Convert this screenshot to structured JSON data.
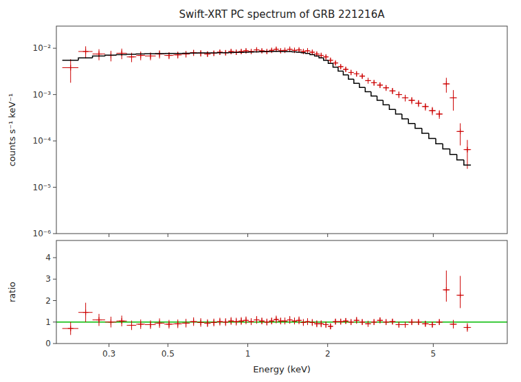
{
  "chart_data": [
    {
      "type": "scatter",
      "title": "Swift-XRT PC spectrum of GRB 221216A",
      "ylabel": "counts s⁻¹ keV⁻¹",
      "log": true,
      "grid": false,
      "tick_labels": "y",
      "background": "#ffffff",
      "xlim": [
        0.19,
        9.5
      ],
      "ylim": [
        1e-06,
        0.03
      ],
      "xticks": [
        0.3,
        0.5,
        1,
        2,
        5
      ],
      "yticks": [
        {
          "value": 1e-06,
          "label": "10⁻⁶"
        },
        {
          "value": 1e-05,
          "label": "10⁻⁵"
        },
        {
          "value": 0.0001,
          "label": "10⁻⁴"
        },
        {
          "value": 0.001,
          "label": "10⁻³"
        },
        {
          "value": 0.01,
          "label": "10⁻²"
        }
      ],
      "series": [
        {
          "type": "scatter",
          "color": "#cc0000",
          "marker": "plus",
          "x": [
            0.215,
            0.245,
            0.275,
            0.305,
            0.335,
            0.365,
            0.395,
            0.43,
            0.465,
            0.505,
            0.545,
            0.585,
            0.625,
            0.665,
            0.705,
            0.745,
            0.785,
            0.825,
            0.865,
            0.905,
            0.945,
            0.985,
            1.03,
            1.08,
            1.13,
            1.18,
            1.23,
            1.28,
            1.33,
            1.38,
            1.44,
            1.5,
            1.56,
            1.62,
            1.68,
            1.75,
            1.82,
            1.89,
            1.97,
            2.05,
            2.14,
            2.24,
            2.34,
            2.45,
            2.57,
            2.7,
            2.84,
            2.99,
            3.15,
            3.32,
            3.51,
            3.71,
            3.92,
            4.15,
            4.4,
            4.67,
            4.96,
            5.27,
            5.6,
            5.95,
            6.32,
            6.72
          ],
          "xerr_lo": [
            0.015,
            0.015,
            0.015,
            0.015,
            0.015,
            0.015,
            0.015,
            0.02,
            0.02,
            0.02,
            0.02,
            0.02,
            0.02,
            0.02,
            0.02,
            0.02,
            0.02,
            0.02,
            0.02,
            0.02,
            0.02,
            0.02,
            0.025,
            0.025,
            0.025,
            0.025,
            0.025,
            0.025,
            0.025,
            0.025,
            0.03,
            0.03,
            0.03,
            0.03,
            0.03,
            0.035,
            0.035,
            0.035,
            0.04,
            0.04,
            0.045,
            0.05,
            0.05,
            0.055,
            0.06,
            0.065,
            0.07,
            0.075,
            0.08,
            0.085,
            0.095,
            0.105,
            0.11,
            0.12,
            0.13,
            0.14,
            0.15,
            0.16,
            0.17,
            0.185,
            0.2,
            0.215
          ],
          "xerr_hi": [
            0.015,
            0.015,
            0.015,
            0.015,
            0.015,
            0.015,
            0.015,
            0.02,
            0.02,
            0.02,
            0.02,
            0.02,
            0.02,
            0.02,
            0.02,
            0.02,
            0.02,
            0.02,
            0.02,
            0.02,
            0.02,
            0.02,
            0.025,
            0.025,
            0.025,
            0.025,
            0.025,
            0.025,
            0.025,
            0.025,
            0.03,
            0.03,
            0.03,
            0.03,
            0.03,
            0.035,
            0.035,
            0.035,
            0.04,
            0.04,
            0.045,
            0.05,
            0.05,
            0.055,
            0.06,
            0.065,
            0.07,
            0.075,
            0.08,
            0.085,
            0.095,
            0.105,
            0.11,
            0.12,
            0.13,
            0.14,
            0.15,
            0.16,
            0.17,
            0.185,
            0.2,
            0.215
          ],
          "values": [
            0.0038,
            0.0085,
            0.0075,
            0.007,
            0.0078,
            0.0065,
            0.007,
            0.0068,
            0.0075,
            0.007,
            0.0072,
            0.0075,
            0.008,
            0.0078,
            0.0075,
            0.0078,
            0.0082,
            0.008,
            0.0085,
            0.0082,
            0.0085,
            0.0088,
            0.0085,
            0.0092,
            0.0088,
            0.0085,
            0.009,
            0.0095,
            0.0088,
            0.009,
            0.0095,
            0.009,
            0.0092,
            0.0085,
            0.0088,
            0.0082,
            0.0075,
            0.007,
            0.0065,
            0.0055,
            0.0048,
            0.004,
            0.0035,
            0.003,
            0.0028,
            0.0025,
            0.002,
            0.0018,
            0.0016,
            0.0014,
            0.0012,
            0.001,
            0.00085,
            0.00075,
            0.00065,
            0.00055,
            0.00045,
            0.00038,
            0.0017,
            0.00085,
            0.00016,
            6.5e-05
          ],
          "yerr_lo": [
            0.002,
            0.0025,
            0.002,
            0.0018,
            0.002,
            0.0015,
            0.0015,
            0.0013,
            0.0015,
            0.0012,
            0.0012,
            0.0012,
            0.0012,
            0.0012,
            0.001,
            0.001,
            0.001,
            0.001,
            0.001,
            0.001,
            0.001,
            0.001,
            0.0009,
            0.001,
            0.0009,
            0.0009,
            0.0009,
            0.001,
            0.0009,
            0.0009,
            0.001,
            0.0009,
            0.0009,
            0.0009,
            0.0009,
            0.0008,
            0.0008,
            0.0008,
            0.0007,
            0.0006,
            0.0005,
            0.00045,
            0.0004,
            0.00035,
            0.00035,
            0.0003,
            0.00028,
            0.00025,
            0.00022,
            0.0002,
            0.00018,
            0.00016,
            0.00014,
            0.00013,
            0.00011,
            0.0001,
            9e-05,
            8e-05,
            0.0006,
            0.0004,
            8e-05,
            4e-05
          ],
          "yerr_hi": [
            0.002,
            0.0025,
            0.002,
            0.0018,
            0.002,
            0.0015,
            0.0015,
            0.0013,
            0.0015,
            0.0012,
            0.0012,
            0.0012,
            0.0012,
            0.0012,
            0.001,
            0.001,
            0.001,
            0.001,
            0.001,
            0.001,
            0.001,
            0.001,
            0.0009,
            0.001,
            0.0009,
            0.0009,
            0.0009,
            0.001,
            0.0009,
            0.0009,
            0.001,
            0.0009,
            0.0009,
            0.0009,
            0.0009,
            0.0008,
            0.0008,
            0.0008,
            0.0007,
            0.0006,
            0.0005,
            0.00045,
            0.0004,
            0.00035,
            0.00035,
            0.0003,
            0.00028,
            0.00025,
            0.00022,
            0.0002,
            0.00018,
            0.00016,
            0.00014,
            0.00013,
            0.00011,
            0.0001,
            9e-05,
            8e-05,
            0.0006,
            0.0004,
            8e-05,
            4e-05
          ]
        },
        {
          "type": "step",
          "color": "#000000",
          "line_style": "solid",
          "x_lo": [
            0.2,
            0.23,
            0.26,
            0.29,
            0.32,
            0.35,
            0.38,
            0.41,
            0.45,
            0.49,
            0.53,
            0.57,
            0.61,
            0.65,
            0.69,
            0.73,
            0.77,
            0.81,
            0.85,
            0.89,
            0.93,
            0.97,
            1.01,
            1.055,
            1.105,
            1.155,
            1.205,
            1.255,
            1.305,
            1.355,
            1.41,
            1.47,
            1.53,
            1.59,
            1.65,
            1.715,
            1.785,
            1.855,
            1.93,
            2.01,
            2.095,
            2.19,
            2.29,
            2.395,
            2.51,
            2.635,
            2.77,
            2.915,
            3.07,
            3.235,
            3.415,
            3.605,
            3.81,
            4.03,
            4.27,
            4.53,
            4.81,
            5.11,
            5.43,
            5.775,
            6.135,
            6.52
          ],
          "x_hi": [
            0.23,
            0.26,
            0.29,
            0.32,
            0.35,
            0.38,
            0.41,
            0.45,
            0.49,
            0.53,
            0.57,
            0.61,
            0.65,
            0.69,
            0.73,
            0.77,
            0.81,
            0.85,
            0.89,
            0.93,
            0.97,
            1.01,
            1.055,
            1.105,
            1.155,
            1.205,
            1.255,
            1.305,
            1.355,
            1.41,
            1.47,
            1.53,
            1.59,
            1.65,
            1.715,
            1.785,
            1.855,
            1.93,
            2.01,
            2.095,
            2.19,
            2.29,
            2.395,
            2.51,
            2.635,
            2.77,
            2.915,
            3.07,
            3.235,
            3.415,
            3.605,
            3.81,
            4.03,
            4.27,
            4.53,
            4.81,
            5.11,
            5.43,
            5.775,
            6.135,
            6.52,
            6.93
          ],
          "values": [
            0.0055,
            0.0062,
            0.0068,
            0.0071,
            0.0073,
            0.0074,
            0.0075,
            0.0076,
            0.00765,
            0.0077,
            0.00775,
            0.0078,
            0.00785,
            0.0079,
            0.00792,
            0.00795,
            0.00797,
            0.008,
            0.00805,
            0.0081,
            0.00815,
            0.0082,
            0.00825,
            0.00835,
            0.0084,
            0.00845,
            0.0085,
            0.00855,
            0.00855,
            0.0085,
            0.00845,
            0.00835,
            0.0082,
            0.008,
            0.0077,
            0.0073,
            0.0068,
            0.0062,
            0.0055,
            0.0047,
            0.0039,
            0.0032,
            0.00265,
            0.00215,
            0.00175,
            0.00142,
            0.00115,
            0.00093,
            0.00075,
            0.0006,
            0.00048,
            0.00038,
            0.0003,
            0.000238,
            0.000187,
            0.000146,
            0.000113,
            8.7e-05,
            6.7e-05,
            5.1e-05,
            3.9e-05,
            3e-05
          ]
        }
      ]
    },
    {
      "type": "scatter",
      "xlabel": "Energy (keV)",
      "ylabel": "ratio",
      "log": "x",
      "grid": false,
      "background": "#ffffff",
      "xlim": [
        0.19,
        9.5
      ],
      "ylim": [
        0,
        4.8
      ],
      "xticks": [
        0.3,
        0.5,
        1,
        2,
        5
      ],
      "yticks": [
        0,
        1,
        2,
        3,
        4
      ],
      "reference_line": {
        "y": 1.0,
        "color": "#00bb00"
      },
      "series": [
        {
          "type": "scatter",
          "color": "#cc0000",
          "marker": "plus",
          "x": [
            0.215,
            0.245,
            0.275,
            0.305,
            0.335,
            0.365,
            0.395,
            0.43,
            0.465,
            0.505,
            0.545,
            0.585,
            0.625,
            0.665,
            0.705,
            0.745,
            0.785,
            0.825,
            0.865,
            0.905,
            0.945,
            0.985,
            1.03,
            1.08,
            1.13,
            1.18,
            1.23,
            1.28,
            1.33,
            1.38,
            1.44,
            1.5,
            1.56,
            1.62,
            1.68,
            1.75,
            1.82,
            1.89,
            1.97,
            2.05,
            2.14,
            2.24,
            2.34,
            2.45,
            2.57,
            2.7,
            2.84,
            2.99,
            3.15,
            3.32,
            3.51,
            3.71,
            3.92,
            4.15,
            4.4,
            4.67,
            4.96,
            5.27,
            5.6,
            5.95,
            6.32,
            6.72
          ],
          "xerr_lo": [
            0.015,
            0.015,
            0.015,
            0.015,
            0.015,
            0.015,
            0.015,
            0.02,
            0.02,
            0.02,
            0.02,
            0.02,
            0.02,
            0.02,
            0.02,
            0.02,
            0.02,
            0.02,
            0.02,
            0.02,
            0.02,
            0.02,
            0.025,
            0.025,
            0.025,
            0.025,
            0.025,
            0.025,
            0.025,
            0.025,
            0.03,
            0.03,
            0.03,
            0.03,
            0.03,
            0.035,
            0.035,
            0.035,
            0.04,
            0.04,
            0.045,
            0.05,
            0.05,
            0.055,
            0.06,
            0.065,
            0.07,
            0.075,
            0.08,
            0.085,
            0.095,
            0.105,
            0.11,
            0.12,
            0.13,
            0.14,
            0.15,
            0.16,
            0.17,
            0.185,
            0.2,
            0.215
          ],
          "xerr_hi": [
            0.015,
            0.015,
            0.015,
            0.015,
            0.015,
            0.015,
            0.015,
            0.02,
            0.02,
            0.02,
            0.02,
            0.02,
            0.02,
            0.02,
            0.02,
            0.02,
            0.02,
            0.02,
            0.02,
            0.02,
            0.02,
            0.02,
            0.025,
            0.025,
            0.025,
            0.025,
            0.025,
            0.025,
            0.025,
            0.025,
            0.03,
            0.03,
            0.03,
            0.03,
            0.03,
            0.035,
            0.035,
            0.035,
            0.04,
            0.04,
            0.045,
            0.05,
            0.05,
            0.055,
            0.06,
            0.065,
            0.07,
            0.075,
            0.08,
            0.085,
            0.095,
            0.105,
            0.11,
            0.12,
            0.13,
            0.14,
            0.15,
            0.16,
            0.17,
            0.185,
            0.2,
            0.215
          ],
          "values": [
            0.7,
            1.45,
            1.1,
            1.0,
            1.05,
            0.85,
            0.9,
            0.88,
            0.95,
            0.9,
            0.92,
            0.95,
            1.02,
            0.98,
            0.95,
            0.98,
            1.02,
            1.0,
            1.05,
            1.02,
            1.05,
            1.08,
            1.02,
            1.1,
            1.05,
            1.0,
            1.05,
            1.12,
            1.05,
            1.05,
            1.1,
            1.05,
            1.08,
            0.98,
            1.02,
            0.98,
            0.92,
            0.92,
            0.88,
            0.8,
            1.02,
            1.02,
            1.05,
            1.0,
            1.08,
            1.0,
            0.92,
            1.0,
            1.08,
            1.0,
            1.02,
            0.88,
            0.88,
            1.0,
            1.0,
            0.92,
            0.88,
            1.0,
            2.5,
            0.9,
            2.25,
            0.75
          ],
          "yerr_lo": [
            0.3,
            0.45,
            0.28,
            0.25,
            0.25,
            0.22,
            0.22,
            0.2,
            0.22,
            0.2,
            0.2,
            0.2,
            0.2,
            0.2,
            0.18,
            0.18,
            0.18,
            0.18,
            0.18,
            0.18,
            0.18,
            0.18,
            0.16,
            0.18,
            0.16,
            0.16,
            0.16,
            0.18,
            0.16,
            0.16,
            0.18,
            0.16,
            0.18,
            0.16,
            0.16,
            0.16,
            0.16,
            0.16,
            0.15,
            0.14,
            0.14,
            0.14,
            0.14,
            0.14,
            0.16,
            0.14,
            0.14,
            0.14,
            0.14,
            0.14,
            0.14,
            0.14,
            0.14,
            0.14,
            0.14,
            0.14,
            0.14,
            0.14,
            0.55,
            0.2,
            0.6,
            0.2
          ],
          "yerr_hi": [
            0.3,
            0.45,
            0.28,
            0.25,
            0.25,
            0.22,
            0.22,
            0.2,
            0.22,
            0.2,
            0.2,
            0.2,
            0.2,
            0.2,
            0.18,
            0.18,
            0.18,
            0.18,
            0.18,
            0.18,
            0.18,
            0.18,
            0.16,
            0.18,
            0.16,
            0.16,
            0.16,
            0.18,
            0.16,
            0.16,
            0.18,
            0.16,
            0.18,
            0.16,
            0.16,
            0.16,
            0.16,
            0.16,
            0.15,
            0.14,
            0.14,
            0.14,
            0.14,
            0.14,
            0.16,
            0.14,
            0.14,
            0.14,
            0.14,
            0.14,
            0.14,
            0.14,
            0.14,
            0.14,
            0.14,
            0.14,
            0.14,
            0.14,
            0.9,
            0.2,
            0.9,
            0.2
          ]
        }
      ]
    }
  ]
}
